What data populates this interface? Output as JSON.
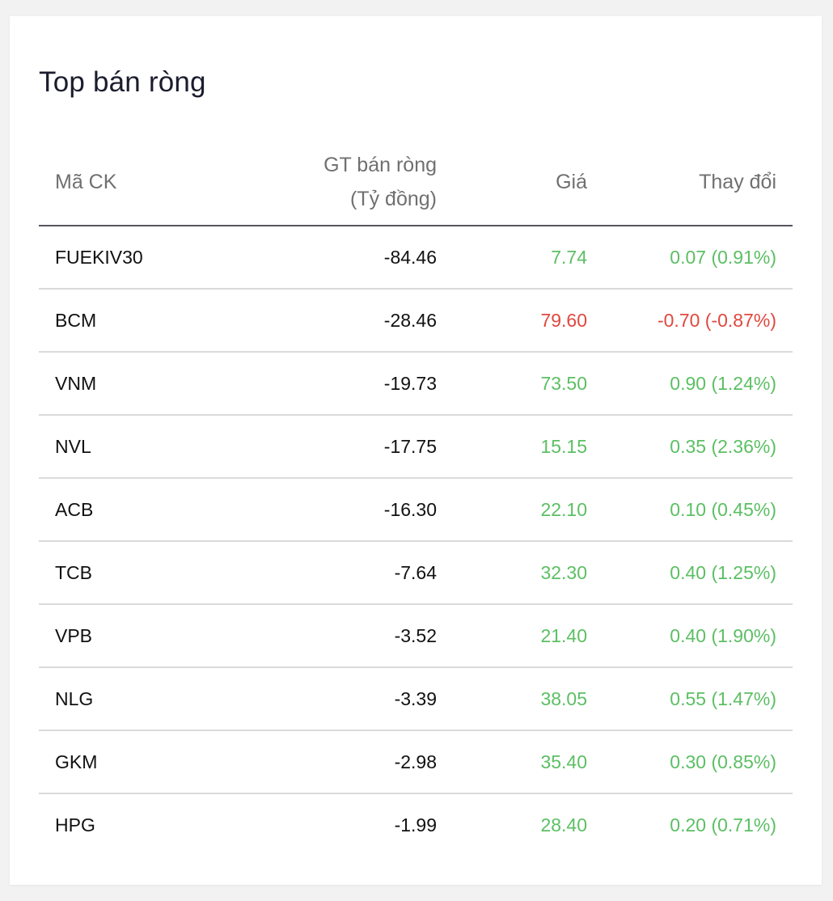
{
  "panel": {
    "title": "Top bán ròng"
  },
  "table": {
    "headers": {
      "symbol": "Mã CK",
      "net_line1": "GT bán ròng",
      "net_line2": "(Tỷ đồng)",
      "price": "Giá",
      "change": "Thay đổi"
    },
    "rows": [
      {
        "symbol": "FUEKIV30",
        "net_value": "-84.46",
        "price": "7.74",
        "change": "0.07 (0.91%)",
        "direction": "up"
      },
      {
        "symbol": "BCM",
        "net_value": "-28.46",
        "price": "79.60",
        "change": "-0.70 (-0.87%)",
        "direction": "down"
      },
      {
        "symbol": "VNM",
        "net_value": "-19.73",
        "price": "73.50",
        "change": "0.90 (1.24%)",
        "direction": "up"
      },
      {
        "symbol": "NVL",
        "net_value": "-17.75",
        "price": "15.15",
        "change": "0.35 (2.36%)",
        "direction": "up"
      },
      {
        "symbol": "ACB",
        "net_value": "-16.30",
        "price": "22.10",
        "change": "0.10 (0.45%)",
        "direction": "up"
      },
      {
        "symbol": "TCB",
        "net_value": "-7.64",
        "price": "32.30",
        "change": "0.40 (1.25%)",
        "direction": "up"
      },
      {
        "symbol": "VPB",
        "net_value": "-3.52",
        "price": "21.40",
        "change": "0.40 (1.90%)",
        "direction": "up"
      },
      {
        "symbol": "NLG",
        "net_value": "-3.39",
        "price": "38.05",
        "change": "0.55 (1.47%)",
        "direction": "up"
      },
      {
        "symbol": "GKM",
        "net_value": "-2.98",
        "price": "35.40",
        "change": "0.30 (0.85%)",
        "direction": "up"
      },
      {
        "symbol": "HPG",
        "net_value": "-1.99",
        "price": "28.40",
        "change": "0.20 (0.71%)",
        "direction": "up"
      }
    ]
  },
  "colors": {
    "up": "#5cbf64",
    "down": "#e0483e"
  }
}
